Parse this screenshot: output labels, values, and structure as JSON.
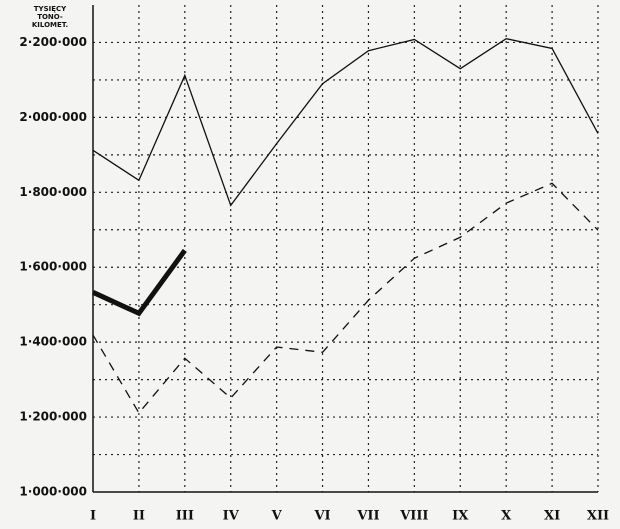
{
  "chart_data": {
    "type": "line",
    "ylabel": [
      "TYSIĘCY",
      "TONO-",
      "KILOMET."
    ],
    "categories": [
      "I",
      "II",
      "III",
      "IV",
      "V",
      "VI",
      "VII",
      "VIII",
      "IX",
      "X",
      "XI",
      "XII"
    ],
    "series": [
      {
        "color": "#111111",
        "style": "solid",
        "width": 1.3,
        "values": [
          1912000,
          1832000,
          2112000,
          1765000,
          1930000,
          2090000,
          2178000,
          2208000,
          2130000,
          2210000,
          2184000,
          1957000
        ]
      },
      {
        "color": "#111111",
        "style": "dashed",
        "width": 1.3,
        "values": [
          1419000,
          1211000,
          1357000,
          1251000,
          1387000,
          1373000,
          1512000,
          1624000,
          1680000,
          1771000,
          1824000,
          1699000
        ]
      },
      {
        "color": "#111111",
        "style": "solid",
        "width": 5,
        "values": [
          1533000,
          1477000,
          1645000,
          null,
          null,
          null,
          null,
          null,
          null,
          null,
          null,
          null
        ]
      }
    ],
    "ylim": [
      1000000,
      2300000
    ],
    "yticks": [
      {
        "value": 1000000,
        "label": "1·000·000"
      },
      {
        "value": 1200000,
        "label": "1·200·000"
      },
      {
        "value": 1400000,
        "label": "1·400·000"
      },
      {
        "value": 1600000,
        "label": "1·600·000"
      },
      {
        "value": 1800000,
        "label": "1·800·000"
      },
      {
        "value": 2000000,
        "label": "2·000·000"
      },
      {
        "value": 2200000,
        "label": "2·200·000"
      }
    ],
    "yminor": [
      1100000,
      1300000,
      1500000,
      1700000,
      1900000,
      2100000
    ],
    "grid": "dotted"
  }
}
